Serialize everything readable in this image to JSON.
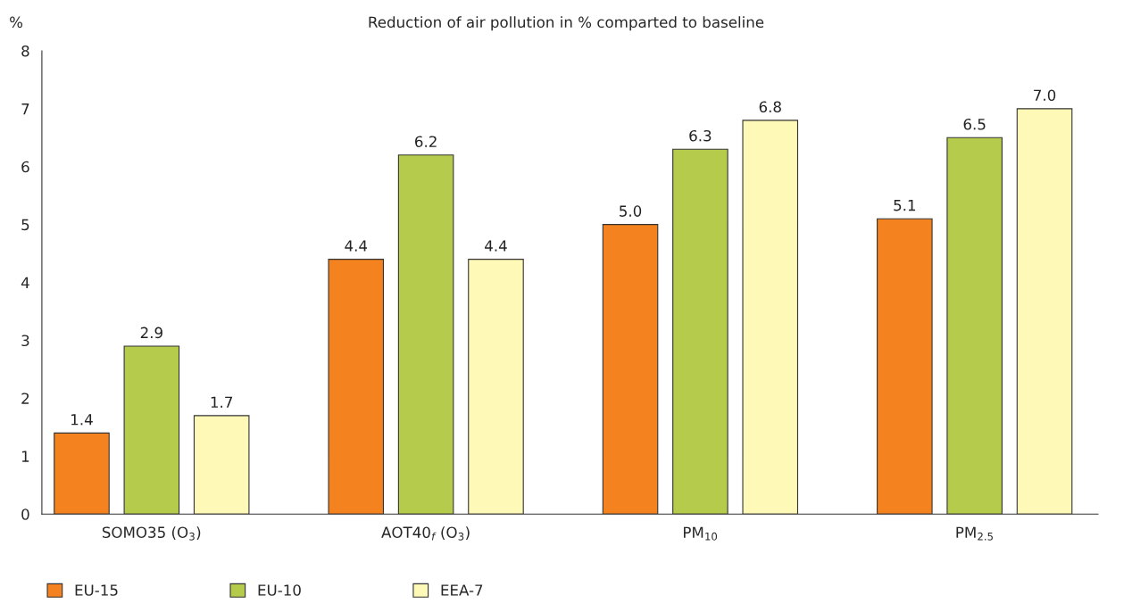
{
  "chart_data": {
    "type": "bar",
    "title": "Reduction of air pollution in % comparted to baseline",
    "ylabel": "%",
    "categories": [
      "SOMO35 (O$_{3}$)",
      "AOT40$_{f}$ (O$_{3}$)",
      "PM$_{10}$",
      "PM$_{2.5}$"
    ],
    "series": [
      {
        "name": "EU-15",
        "color": "#f4821f",
        "values": [
          1.4,
          4.4,
          5.0,
          5.1
        ],
        "value_labels": [
          "1.4",
          "4.4",
          "5.0",
          "5.1"
        ]
      },
      {
        "name": "EU-10",
        "color": "#b5cb4b",
        "values": [
          2.9,
          6.2,
          6.3,
          6.5
        ],
        "value_labels": [
          "2.9",
          "6.2",
          "6.3",
          "6.5"
        ]
      },
      {
        "name": "EEA-7",
        "color": "#fff9b8",
        "values": [
          1.7,
          4.4,
          6.8,
          7.0
        ],
        "value_labels": [
          "1.7",
          "4.4",
          "6.8",
          "7.0"
        ]
      }
    ],
    "ylim": [
      0,
      8
    ],
    "yticks": [
      0,
      1,
      2,
      3,
      4,
      5,
      6,
      7,
      8
    ],
    "grid": false,
    "legend": "bottom left"
  }
}
